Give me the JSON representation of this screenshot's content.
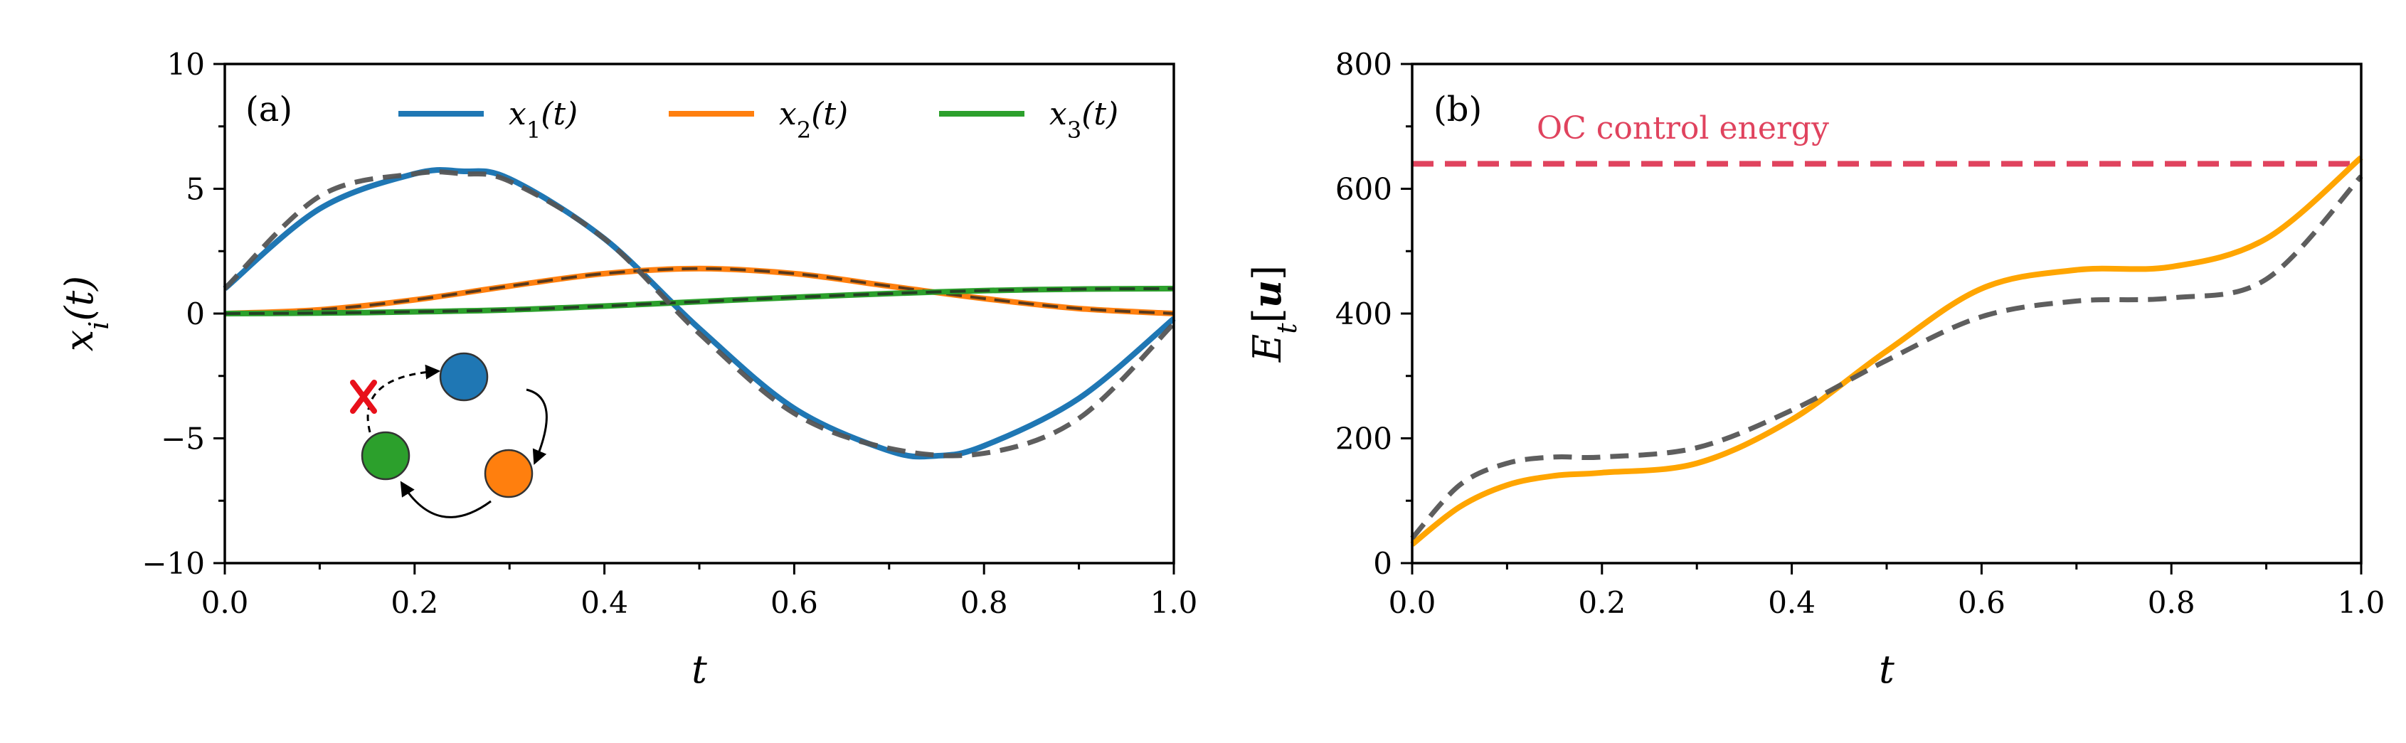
{
  "chart_data": [
    {
      "type": "line",
      "panel_label": "(a)",
      "xlabel": "t",
      "ylabel": "x_i(t)",
      "xlim": [
        0.0,
        1.0
      ],
      "ylim": [
        -10,
        10
      ],
      "xticks": [
        "0.0",
        "0.2",
        "0.4",
        "0.6",
        "0.8",
        "1.0"
      ],
      "yticks": [
        "10",
        "5",
        "0",
        "−5",
        "−10"
      ],
      "legend_position": "top",
      "series": [
        {
          "name": "x1(t)",
          "color": "#1f77b4",
          "style": "solid",
          "x": [
            0,
            0.1,
            0.2,
            0.25,
            0.3,
            0.4,
            0.5,
            0.6,
            0.7,
            0.75,
            0.8,
            0.9,
            1.0
          ],
          "y": [
            1.0,
            4.2,
            5.6,
            5.7,
            5.4,
            3.0,
            -0.6,
            -3.8,
            -5.5,
            -5.7,
            -5.3,
            -3.4,
            -0.2
          ]
        },
        {
          "name": "x2(t)",
          "color": "#ff7f0e",
          "style": "solid",
          "x": [
            0,
            0.1,
            0.2,
            0.3,
            0.4,
            0.5,
            0.6,
            0.7,
            0.8,
            0.9,
            1.0
          ],
          "y": [
            0,
            0.15,
            0.55,
            1.1,
            1.6,
            1.8,
            1.6,
            1.1,
            0.6,
            0.2,
            0
          ]
        },
        {
          "name": "x3(t)",
          "color": "#2ca02c",
          "style": "solid",
          "x": [
            0,
            0.1,
            0.2,
            0.3,
            0.4,
            0.5,
            0.6,
            0.7,
            0.8,
            0.9,
            1.0
          ],
          "y": [
            0,
            0.02,
            0.07,
            0.15,
            0.3,
            0.48,
            0.65,
            0.8,
            0.92,
            0.98,
            1.0
          ]
        },
        {
          "name": "",
          "color": "#555555",
          "style": "dashed",
          "x": [
            0,
            0.1,
            0.2,
            0.25,
            0.3,
            0.4,
            0.5,
            0.6,
            0.7,
            0.8,
            0.9,
            1.0
          ],
          "y": [
            1.0,
            4.7,
            5.6,
            5.6,
            5.3,
            3.0,
            -0.8,
            -4.0,
            -5.4,
            -5.6,
            -4.2,
            -0.4
          ]
        }
      ],
      "inset": {
        "nodes": [
          {
            "name": "blue-node",
            "color": "#1f77b4"
          },
          {
            "name": "orange-node",
            "color": "#ff7f0e"
          },
          {
            "name": "green-node",
            "color": "#2ca02c"
          }
        ],
        "blocked_edge_color": "#e8101a"
      }
    },
    {
      "type": "line",
      "panel_label": "(b)",
      "xlabel": "t",
      "ylabel": "E_t[u]",
      "xlim": [
        0.0,
        1.0
      ],
      "ylim": [
        0,
        800
      ],
      "xticks": [
        "0.0",
        "0.2",
        "0.4",
        "0.6",
        "0.8",
        "1.0"
      ],
      "yticks": [
        "800",
        "600",
        "400",
        "200",
        "0"
      ],
      "annotation": {
        "text": "OC control energy",
        "color": "#e0435e",
        "value": 640
      },
      "series": [
        {
          "name": "",
          "color": "#ffa500",
          "style": "solid",
          "x": [
            0,
            0.05,
            0.1,
            0.15,
            0.2,
            0.3,
            0.4,
            0.5,
            0.6,
            0.7,
            0.8,
            0.9,
            1.0
          ],
          "y": [
            30,
            90,
            125,
            140,
            145,
            160,
            230,
            340,
            440,
            470,
            475,
            520,
            650
          ]
        },
        {
          "name": "",
          "color": "#555555",
          "style": "dashed",
          "x": [
            0,
            0.05,
            0.1,
            0.15,
            0.2,
            0.3,
            0.4,
            0.5,
            0.6,
            0.7,
            0.8,
            0.9,
            1.0
          ],
          "y": [
            40,
            125,
            160,
            170,
            170,
            185,
            245,
            325,
            395,
            420,
            425,
            455,
            620
          ]
        }
      ]
    }
  ]
}
